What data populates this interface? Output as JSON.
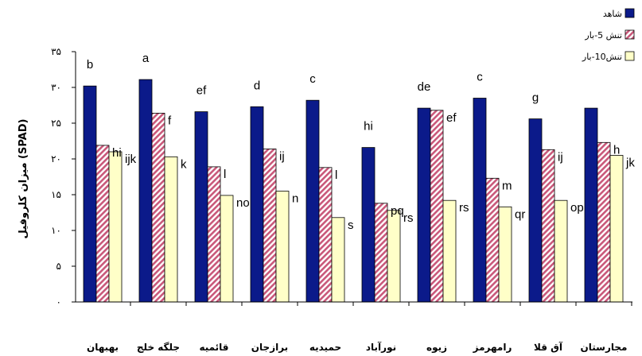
{
  "chart_data": {
    "type": "bar",
    "ylabel": "میزان کلروفیل (SPAD)",
    "ylim": [
      0,
      35
    ],
    "yticks": [
      "۰",
      "۵",
      "۱۰",
      "۱۵",
      "۲۰",
      "۲۵",
      "۳۰",
      "۳۵"
    ],
    "categories": [
      "بهبهان",
      "جلگه خلج",
      "قائمیه",
      "برازجان",
      "حمیدیه",
      "نورآباد",
      "زیوه",
      "رامهرمز",
      "آق قلا",
      "مجارستان"
    ],
    "series": [
      {
        "name": "شاهد",
        "color": "#0b1a8a",
        "pattern": "solid",
        "values": [
          30.2,
          31.1,
          26.6,
          27.3,
          28.2,
          21.6,
          27.1,
          28.5,
          25.6,
          27.1
        ],
        "letters": [
          "b",
          "a",
          "ef",
          "d",
          "c",
          "hi",
          "de",
          "c",
          "g",
          ""
        ]
      },
      {
        "name": "تنش 5-بار",
        "color": "#c9587a",
        "pattern": "hatch",
        "values": [
          21.9,
          26.4,
          18.9,
          21.4,
          18.8,
          13.8,
          26.8,
          17.3,
          21.3,
          22.3
        ],
        "letters": [
          "hi",
          "f",
          "l",
          "ij",
          "l",
          "pq",
          "ef",
          "m",
          "ij",
          "h"
        ]
      },
      {
        "name": "تنش10-بار",
        "color": "#ffffc8",
        "pattern": "solid",
        "values": [
          21.0,
          20.3,
          14.9,
          15.5,
          11.8,
          12.8,
          14.2,
          13.3,
          14.2,
          20.5
        ],
        "letters": [
          "ijk",
          "k",
          "no",
          "n",
          "s",
          "rs",
          "rs",
          "qr",
          "op",
          "jk"
        ]
      }
    ]
  }
}
